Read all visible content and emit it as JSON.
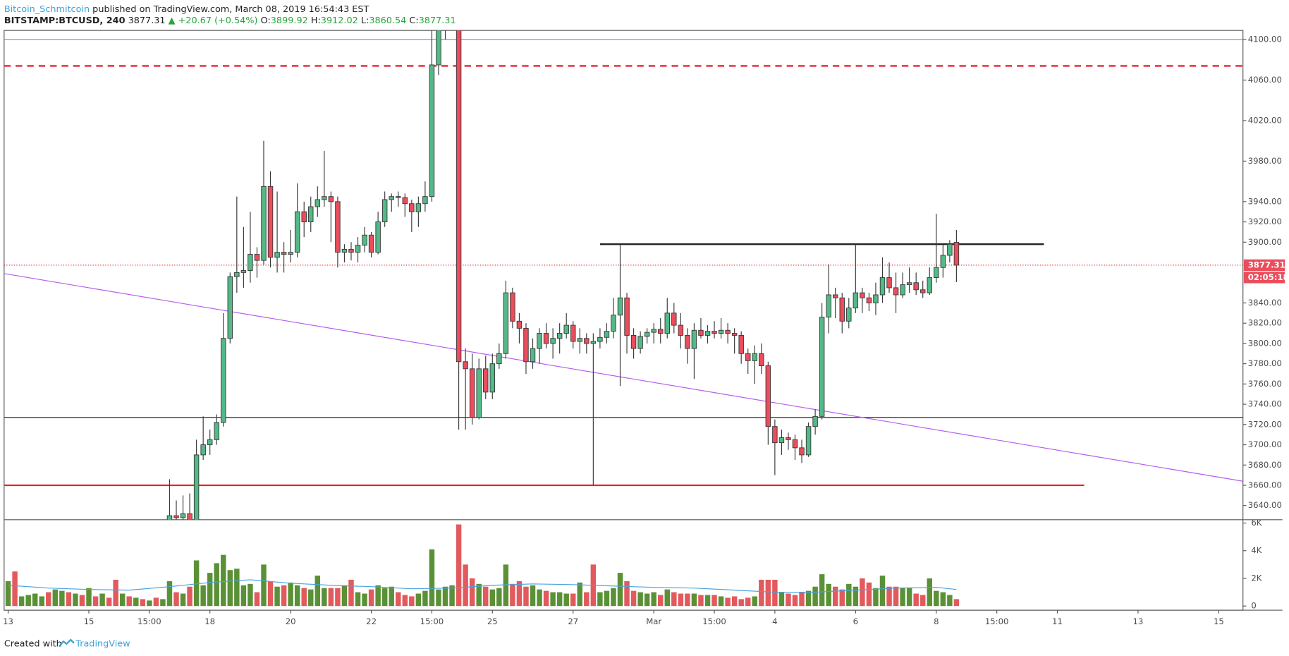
{
  "chart_data": {
    "type": "candlestick",
    "header": {
      "author": "Bitcoin_Schmitcoin",
      "published": "published on TradingView.com, March 08, 2019 16:54:43 EST",
      "symbol": "BITSTAMP:BTCUSD, 240",
      "last": "3877.31",
      "change": "▲ +20.67 (+0.54%)",
      "ohlc": [
        {
          "label": "O:",
          "value": "3899.92"
        },
        {
          "label": "H:",
          "value": "3912.02"
        },
        {
          "label": "L:",
          "value": "3860.54"
        },
        {
          "label": "C:",
          "value": "3877.31"
        }
      ]
    },
    "footer": {
      "created": "Created with",
      "brand": "TradingView"
    },
    "price_label": "3877.31",
    "countdown": "02:05:18",
    "up_color": "#53b987",
    "down_color": "#eb4d5c",
    "xlim": [
      -0.6,
      183.6
    ],
    "ylim": [
      3626,
      4109
    ],
    "xticks": [
      {
        "value": 0,
        "label": "13"
      },
      {
        "value": 12,
        "label": "15"
      },
      {
        "value": 21,
        "label": "15:00"
      },
      {
        "value": 30,
        "label": "18"
      },
      {
        "value": 42,
        "label": "20"
      },
      {
        "value": 54,
        "label": "22"
      },
      {
        "value": 63,
        "label": "15:00"
      },
      {
        "value": 72,
        "label": "25"
      },
      {
        "value": 84,
        "label": "27"
      },
      {
        "value": 96,
        "label": "Mar"
      },
      {
        "value": 105,
        "label": "15:00"
      },
      {
        "value": 114,
        "label": "4"
      },
      {
        "value": 126,
        "label": "6"
      },
      {
        "value": 138,
        "label": "8"
      },
      {
        "value": 147,
        "label": "15:00"
      },
      {
        "value": 156,
        "label": "11"
      },
      {
        "value": 168,
        "label": "13"
      },
      {
        "value": 180,
        "label": "15"
      }
    ],
    "yticks": [
      {
        "value": 4100,
        "label": "4100.00"
      },
      {
        "value": 4060,
        "label": "4060.00"
      },
      {
        "value": 4020,
        "label": "4020.00"
      },
      {
        "value": 3980,
        "label": "3980.00"
      },
      {
        "value": 3940,
        "label": "3940.00"
      },
      {
        "value": 3920,
        "label": "3920.00"
      },
      {
        "value": 3900,
        "label": "3900.00"
      },
      {
        "value": 3840,
        "label": "3840.00"
      },
      {
        "value": 3820,
        "label": "3820.00"
      },
      {
        "value": 3800,
        "label": "3800.00"
      },
      {
        "value": 3780,
        "label": "3780.00"
      },
      {
        "value": 3760,
        "label": "3760.00"
      },
      {
        "value": 3740,
        "label": "3740.00"
      },
      {
        "value": 3720,
        "label": "3720.00"
      },
      {
        "value": 3700,
        "label": "3700.00"
      },
      {
        "value": 3680,
        "label": "3680.00"
      },
      {
        "value": 3660,
        "label": "3660.00"
      },
      {
        "value": 3640,
        "label": "3640.00"
      }
    ],
    "x": [
      24,
      25,
      26,
      27,
      28,
      29,
      30,
      31,
      32,
      33,
      34,
      35,
      36,
      37,
      38,
      39,
      40,
      41,
      42,
      43,
      44,
      45,
      46,
      47,
      48,
      49,
      50,
      51,
      52,
      53,
      54,
      55,
      56,
      57,
      58,
      59,
      60,
      61,
      62,
      63,
      64,
      65,
      66,
      67,
      68,
      69,
      70,
      71,
      72,
      73,
      74,
      75,
      76,
      77,
      78,
      79,
      80,
      81,
      82,
      83,
      84,
      85,
      86,
      87,
      88,
      89,
      90,
      91,
      92,
      93,
      94,
      95,
      96,
      97,
      98,
      99,
      100,
      101,
      102,
      103,
      104,
      105,
      106,
      107,
      108,
      109,
      110,
      111,
      112,
      113,
      114,
      115,
      116,
      117,
      118,
      119,
      120,
      121,
      122,
      123,
      124,
      125,
      126,
      127,
      128,
      129,
      130,
      131,
      132,
      133,
      134,
      135,
      136,
      137,
      138,
      139,
      140,
      141
    ],
    "open": [
      3625,
      3630,
      3628,
      3632,
      3625,
      3690,
      3700,
      3705,
      3722,
      3805,
      3866,
      3870,
      3872,
      3888,
      3882,
      3955,
      3885,
      3890,
      3888,
      3890,
      3930,
      3920,
      3935,
      3942,
      3945,
      3940,
      3890,
      3893,
      3890,
      3897,
      3907,
      3890,
      3920,
      3942,
      3945,
      3944,
      3938,
      3930,
      3938,
      3945,
      4075,
      4110,
      4120,
      4130,
      3782,
      3775,
      3727,
      3775,
      3752,
      3780,
      3790,
      3850,
      3822,
      3815,
      3782,
      3795,
      3810,
      3800,
      3805,
      3810,
      3818,
      3802,
      3805,
      3800,
      3802,
      3806,
      3812,
      3828,
      3845,
      3808,
      3795,
      3807,
      3811,
      3814,
      3810,
      3830,
      3818,
      3808,
      3795,
      3813,
      3808,
      3812,
      3810,
      3813,
      3810,
      3808,
      3790,
      3783,
      3790,
      3778,
      3718,
      3702,
      3707,
      3705,
      3697,
      3690,
      3718,
      3728,
      3826,
      3848,
      3845,
      3822,
      3835,
      3850,
      3845,
      3840,
      3848,
      3865,
      3855,
      3848,
      3858,
      3860,
      3853,
      3850,
      3865,
      3875,
      3887,
      3899.92
    ],
    "high": [
      3666,
      3645,
      3650,
      3652,
      3705,
      3728,
      3715,
      3730,
      3830,
      3870,
      3945,
      3915,
      3930,
      3895,
      4000,
      3970,
      3950,
      3900,
      3912,
      3958,
      3940,
      3945,
      3955,
      3990,
      3950,
      3945,
      3898,
      3900,
      3905,
      3915,
      3910,
      3930,
      3950,
      3948,
      3950,
      3948,
      3942,
      3945,
      3960,
      4110,
      4130,
      4140,
      4145,
      4135,
      3795,
      3790,
      3785,
      3788,
      3790,
      3800,
      3862,
      3855,
      3830,
      3820,
      3805,
      3815,
      3820,
      3815,
      3820,
      3830,
      3822,
      3815,
      3810,
      3810,
      3815,
      3820,
      3845,
      3898,
      3850,
      3815,
      3812,
      3815,
      3820,
      3825,
      3845,
      3840,
      3830,
      3815,
      3820,
      3825,
      3818,
      3822,
      3825,
      3820,
      3815,
      3812,
      3795,
      3798,
      3800,
      3782,
      3725,
      3715,
      3712,
      3710,
      3705,
      3722,
      3735,
      3840,
      3878,
      3855,
      3850,
      3845,
      3898,
      3855,
      3850,
      3860,
      3885,
      3880,
      3870,
      3870,
      3875,
      3870,
      3862,
      3875,
      3928,
      3897,
      3902,
      3912.02
    ],
    "low": [
      3600,
      3610,
      3615,
      3620,
      3620,
      3685,
      3690,
      3700,
      3718,
      3800,
      3850,
      3855,
      3860,
      3865,
      3878,
      3875,
      3870,
      3870,
      3880,
      3885,
      3905,
      3910,
      3925,
      3935,
      3900,
      3875,
      3880,
      3882,
      3880,
      3890,
      3885,
      3888,
      3915,
      3930,
      3935,
      3925,
      3910,
      3915,
      3930,
      3940,
      4065,
      4100,
      4110,
      3715,
      3715,
      3720,
      3725,
      3745,
      3745,
      3775,
      3785,
      3815,
      3800,
      3770,
      3775,
      3780,
      3795,
      3785,
      3790,
      3805,
      3795,
      3790,
      3790,
      3660,
      3795,
      3800,
      3805,
      3758,
      3790,
      3785,
      3790,
      3800,
      3800,
      3800,
      3805,
      3810,
      3795,
      3780,
      3765,
      3805,
      3800,
      3805,
      3805,
      3800,
      3790,
      3780,
      3770,
      3760,
      3770,
      3700,
      3670,
      3690,
      3695,
      3685,
      3682,
      3688,
      3710,
      3725,
      3810,
      3825,
      3810,
      3815,
      3830,
      3830,
      3832,
      3828,
      3840,
      3850,
      3830,
      3845,
      3850,
      3848,
      3845,
      3848,
      3860,
      3865,
      3880,
      3860.54
    ],
    "close": [
      3630,
      3628,
      3632,
      3625,
      3690,
      3700,
      3705,
      3722,
      3805,
      3866,
      3870,
      3872,
      3888,
      3882,
      3955,
      3885,
      3890,
      3888,
      3890,
      3930,
      3920,
      3935,
      3942,
      3945,
      3940,
      3890,
      3893,
      3890,
      3897,
      3907,
      3890,
      3920,
      3942,
      3945,
      3944,
      3938,
      3930,
      3938,
      3945,
      4075,
      4110,
      4120,
      4130,
      3782,
      3775,
      3727,
      3775,
      3752,
      3780,
      3790,
      3850,
      3822,
      3815,
      3782,
      3795,
      3810,
      3800,
      3805,
      3810,
      3818,
      3802,
      3805,
      3800,
      3802,
      3806,
      3812,
      3828,
      3845,
      3808,
      3795,
      3807,
      3811,
      3814,
      3810,
      3830,
      3818,
      3808,
      3795,
      3813,
      3808,
      3812,
      3810,
      3813,
      3810,
      3808,
      3790,
      3783,
      3790,
      3778,
      3718,
      3702,
      3707,
      3705,
      3697,
      3690,
      3718,
      3728,
      3826,
      3848,
      3845,
      3822,
      3835,
      3850,
      3845,
      3840,
      3848,
      3865,
      3855,
      3848,
      3858,
      3860,
      3853,
      3850,
      3865,
      3875,
      3887,
      3898,
      3877.31
    ],
    "lines": [
      {
        "x": [
          -0.6,
          183.6
        ],
        "y": [
          4100,
          4100
        ],
        "color": "#b45cf0",
        "style": "solid"
      },
      {
        "x": [
          -0.6,
          183.6
        ],
        "y": [
          4074,
          4074
        ],
        "color": "#e8232b",
        "style": "dashed"
      },
      {
        "x": [
          -0.6,
          183.6
        ],
        "y": [
          3877.31,
          3877.31
        ],
        "color": "#e8232b",
        "style": "dotted"
      },
      {
        "x": [
          -0.6,
          183.6
        ],
        "y": [
          3727,
          3727
        ],
        "color": "#333333",
        "style": "solid"
      },
      {
        "x": [
          -0.6,
          160
        ],
        "y": [
          3660,
          3660
        ],
        "color": "#e8232b",
        "style": "thick"
      },
      {
        "x": [
          88,
          154
        ],
        "y": [
          3898,
          3898
        ],
        "color": "#222222",
        "style": "thick"
      },
      {
        "x": [
          -0.6,
          183.6
        ],
        "y": [
          3869,
          3664
        ],
        "color": "#b45cf0",
        "style": "solid"
      }
    ],
    "volume": {
      "ylim": [
        -300,
        6240
      ],
      "yticks": [
        {
          "value": 6000,
          "label": "6K"
        },
        {
          "value": 4000,
          "label": "4K"
        },
        {
          "value": 2000,
          "label": "2K"
        },
        0
      ],
      "up_color": "#5b9136",
      "down_color": "#e25a5e",
      "x": [
        0,
        1,
        2,
        3,
        4,
        5,
        6,
        7,
        8,
        9,
        10,
        11,
        12,
        13,
        14,
        15,
        16,
        17,
        18,
        19,
        20,
        21,
        22,
        23,
        24,
        25,
        26,
        27,
        28,
        29,
        30,
        31,
        32,
        33,
        34,
        35,
        36,
        37,
        38,
        39,
        40,
        41,
        42,
        43,
        44,
        45,
        46,
        47,
        48,
        49,
        50,
        51,
        52,
        53,
        54,
        55,
        56,
        57,
        58,
        59,
        60,
        61,
        62,
        63,
        64,
        65,
        66,
        67,
        68,
        69,
        70,
        71,
        72,
        73,
        74,
        75,
        76,
        77,
        78,
        79,
        80,
        81,
        82,
        83,
        84,
        85,
        86,
        87,
        88,
        89,
        90,
        91,
        92,
        93,
        94,
        95,
        96,
        97,
        98,
        99,
        100,
        101,
        102,
        103,
        104,
        105,
        106,
        107,
        108,
        109,
        110,
        111,
        112,
        113,
        114,
        115,
        116,
        117,
        118,
        119,
        120,
        121,
        122,
        123,
        124,
        125,
        126,
        127,
        128,
        129,
        130,
        131,
        132,
        133,
        134,
        135,
        136,
        137,
        138,
        139,
        140,
        141
      ],
      "values": [
        1800,
        2500,
        700,
        800,
        900,
        700,
        1000,
        1200,
        1100,
        1000,
        900,
        800,
        1300,
        700,
        900,
        600,
        1900,
        900,
        700,
        600,
        500,
        400,
        600,
        500,
        1800,
        1000,
        900,
        1400,
        3300,
        1500,
        2400,
        3100,
        3700,
        2600,
        2700,
        1500,
        1600,
        1000,
        3000,
        1800,
        1400,
        1500,
        1700,
        1500,
        1300,
        1200,
        2200,
        1300,
        1300,
        1300,
        1500,
        1900,
        1000,
        900,
        1200,
        1500,
        1300,
        1400,
        1000,
        800,
        700,
        900,
        1100,
        4100,
        1200,
        1400,
        1500,
        5900,
        3000,
        2000,
        1600,
        1400,
        1200,
        1300,
        3000,
        1600,
        1800,
        1400,
        1500,
        1200,
        1100,
        1000,
        1000,
        900,
        900,
        1700,
        1000,
        3000,
        1000,
        1100,
        1300,
        2400,
        1800,
        1100,
        1000,
        900,
        1000,
        800,
        1200,
        1000,
        900,
        900,
        900,
        800,
        800,
        800,
        700,
        600,
        700,
        500,
        600,
        700,
        1900,
        1900,
        1900,
        1000,
        900,
        800,
        1000,
        1100,
        1400,
        2300,
        1600,
        1400,
        1200,
        1600,
        1400,
        2000,
        1700,
        1300,
        2200,
        1400,
        1400,
        1300,
        1300,
        900,
        800,
        2000,
        1100,
        1000,
        800,
        500
      ],
      "up": [
        true,
        false,
        true,
        true,
        true,
        true,
        false,
        true,
        true,
        false,
        true,
        false,
        true,
        false,
        true,
        false,
        false,
        true,
        false,
        true,
        false,
        true,
        false,
        true,
        true,
        false,
        true,
        false,
        true,
        true,
        true,
        true,
        true,
        true,
        true,
        true,
        true,
        false,
        true,
        false,
        true,
        false,
        true,
        true,
        false,
        true,
        true,
        true,
        false,
        false,
        true,
        false,
        true,
        true,
        false,
        true,
        true,
        true,
        false,
        false,
        false,
        true,
        true,
        true,
        true,
        true,
        true,
        false,
        false,
        false,
        true,
        false,
        true,
        true,
        true,
        false,
        false,
        false,
        true,
        true,
        false,
        true,
        true,
        true,
        false,
        true,
        false,
        false,
        true,
        true,
        true,
        true,
        false,
        false,
        true,
        true,
        true,
        false,
        true,
        false,
        false,
        false,
        true,
        false,
        true,
        false,
        true,
        false,
        false,
        false,
        false,
        true,
        false,
        false,
        false,
        true,
        false,
        false,
        false,
        true,
        true,
        true,
        true,
        false,
        false,
        true,
        true,
        false,
        false,
        true,
        true,
        false,
        false,
        true,
        true,
        false,
        false,
        true,
        true,
        true,
        true,
        false
      ],
      "ma": {
        "color": "#4aa3df",
        "x": [
          0,
          6,
          12,
          18,
          24,
          30,
          36,
          42,
          48,
          54,
          60,
          66,
          72,
          78,
          84,
          90,
          96,
          102,
          108,
          114,
          120,
          126,
          132,
          138,
          141
        ],
        "values": [
          1500,
          1300,
          1200,
          1150,
          1400,
          1700,
          1900,
          1650,
          1500,
          1400,
          1250,
          1300,
          1500,
          1600,
          1550,
          1450,
          1350,
          1300,
          1150,
          1000,
          1000,
          1150,
          1300,
          1350,
          1200
        ]
      }
    }
  }
}
